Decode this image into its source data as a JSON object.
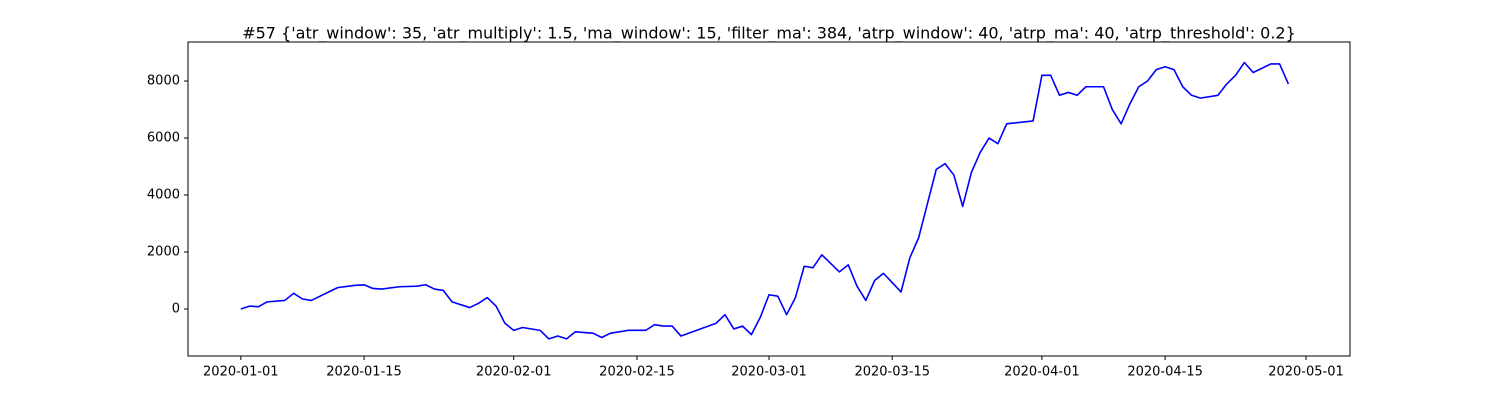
{
  "chart_data": {
    "type": "line",
    "title": "#57 {'atr_window': 35, 'atr_multiply': 1.5, 'ma_window': 15, 'filter_ma': 384, 'atrp_window': 40, 'atrp_ma': 40, 'atrp_threshold': 0.2}",
    "x": [
      "2020-01-01",
      "2020-01-02",
      "2020-01-03",
      "2020-01-04",
      "2020-01-06",
      "2020-01-07",
      "2020-01-08",
      "2020-01-09",
      "2020-01-10",
      "2020-01-11",
      "2020-01-12",
      "2020-01-14",
      "2020-01-15",
      "2020-01-16",
      "2020-01-17",
      "2020-01-19",
      "2020-01-21",
      "2020-01-22",
      "2020-01-23",
      "2020-01-24",
      "2020-01-25",
      "2020-01-27",
      "2020-01-28",
      "2020-01-29",
      "2020-01-30",
      "2020-01-31",
      "2020-02-01",
      "2020-02-02",
      "2020-02-04",
      "2020-02-05",
      "2020-02-06",
      "2020-02-07",
      "2020-02-08",
      "2020-02-10",
      "2020-02-11",
      "2020-02-12",
      "2020-02-13",
      "2020-02-14",
      "2020-02-16",
      "2020-02-17",
      "2020-02-18",
      "2020-02-19",
      "2020-02-20",
      "2020-02-24",
      "2020-02-25",
      "2020-02-26",
      "2020-02-27",
      "2020-02-28",
      "2020-02-29",
      "2020-03-01",
      "2020-03-02",
      "2020-03-03",
      "2020-03-04",
      "2020-03-05",
      "2020-03-06",
      "2020-03-07",
      "2020-03-09",
      "2020-03-10",
      "2020-03-11",
      "2020-03-12",
      "2020-03-13",
      "2020-03-14",
      "2020-03-16",
      "2020-03-17",
      "2020-03-18",
      "2020-03-19",
      "2020-03-20",
      "2020-03-21",
      "2020-03-22",
      "2020-03-23",
      "2020-03-24",
      "2020-03-25",
      "2020-03-26",
      "2020-03-27",
      "2020-03-28",
      "2020-03-31",
      "2020-04-01",
      "2020-04-02",
      "2020-04-03",
      "2020-04-04",
      "2020-04-05",
      "2020-04-06",
      "2020-04-08",
      "2020-04-09",
      "2020-04-10",
      "2020-04-11",
      "2020-04-12",
      "2020-04-13",
      "2020-04-14",
      "2020-04-15",
      "2020-04-16",
      "2020-04-17",
      "2020-04-18",
      "2020-04-19",
      "2020-04-21",
      "2020-04-22",
      "2020-04-23",
      "2020-04-24",
      "2020-04-25",
      "2020-04-27",
      "2020-04-28",
      "2020-04-29"
    ],
    "series": [
      {
        "color": "#0000ff",
        "values": [
          0,
          100,
          80,
          250,
          300,
          550,
          350,
          300,
          450,
          600,
          750,
          830,
          850,
          720,
          700,
          780,
          800,
          850,
          700,
          650,
          250,
          50,
          200,
          400,
          100,
          -500,
          -750,
          -650,
          -750,
          -1050,
          -950,
          -1050,
          -800,
          -850,
          -1000,
          -850,
          -800,
          -750,
          -750,
          -550,
          -600,
          -600,
          -950,
          -500,
          -200,
          -700,
          -600,
          -900,
          -300,
          500,
          450,
          -200,
          400,
          1500,
          1450,
          1900,
          1300,
          1550,
          800,
          300,
          1000,
          1250,
          600,
          1800,
          2500,
          3700,
          4900,
          5100,
          4700,
          3600,
          4800,
          5500,
          6000,
          5800,
          6500,
          6600,
          8200,
          8200,
          7500,
          7600,
          7500,
          7800,
          7800,
          7000,
          6500,
          7200,
          7800,
          8000,
          8400,
          8500,
          8400,
          7800,
          7500,
          7400,
          7500,
          7900,
          8200,
          8650,
          8300,
          8600,
          8600,
          7900
        ]
      }
    ],
    "xlim": [
      "2019-12-26",
      "2020-05-06"
    ],
    "xticks": [
      "2020-01-01",
      "2020-01-15",
      "2020-02-01",
      "2020-02-15",
      "2020-03-01",
      "2020-03-15",
      "2020-04-01",
      "2020-04-15",
      "2020-05-01"
    ],
    "ylim": [
      -1650,
      9370
    ],
    "yticks": [
      0,
      2000,
      4000,
      6000,
      8000
    ]
  }
}
